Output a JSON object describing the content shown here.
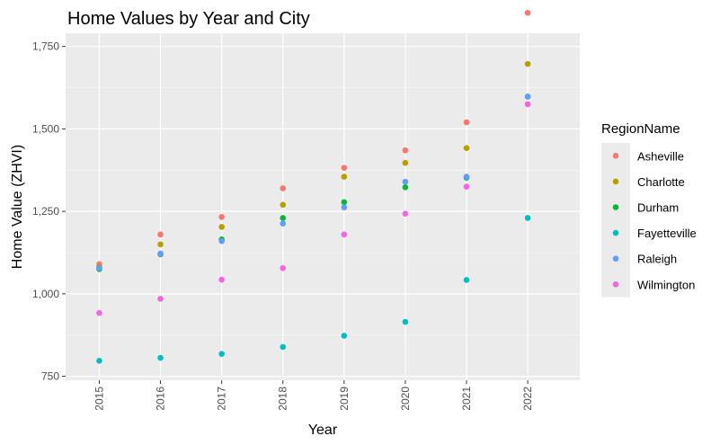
{
  "chart_data": {
    "type": "scatter",
    "title": "Home Values by Year and City",
    "xlabel": "Year",
    "ylabel": "Home Value (ZHVI)",
    "categories": [
      "2015",
      "2016",
      "2017",
      "2018",
      "2019",
      "2020",
      "2021",
      "2022"
    ],
    "ylim": [
      738,
      1790
    ],
    "yticks": [
      750,
      1000,
      1250,
      1500,
      1750
    ],
    "ytick_labels": [
      "750",
      "1,000",
      "1,250",
      "1,500",
      "1,750"
    ],
    "x_tick_rotation": "vertical",
    "grid": true,
    "legend": {
      "title": "RegionName",
      "position": "right"
    },
    "series": [
      {
        "name": "Asheville",
        "color": "#F8766D",
        "values": [
          1090,
          1180,
          1233,
          1320,
          1382,
          1435,
          1520,
          1852
        ]
      },
      {
        "name": "Charlotte",
        "color": "#B79F00",
        "values": [
          1082,
          1150,
          1203,
          1270,
          1355,
          1397,
          1442,
          1697
        ]
      },
      {
        "name": "Durham",
        "color": "#00BA38",
        "values": [
          1075,
          1120,
          1165,
          1230,
          1278,
          1323,
          1352,
          1598
        ]
      },
      {
        "name": "Fayetteville",
        "color": "#00BFC4",
        "values": [
          797,
          806,
          818,
          839,
          873,
          915,
          1042,
          1230
        ]
      },
      {
        "name": "Raleigh",
        "color": "#619CFF",
        "values": [
          1078,
          1122,
          1160,
          1213,
          1262,
          1340,
          1355,
          1598
        ]
      },
      {
        "name": "Wilmington",
        "color": "#F564E3",
        "values": [
          942,
          985,
          1043,
          1078,
          1180,
          1243,
          1325,
          1575
        ]
      }
    ]
  }
}
